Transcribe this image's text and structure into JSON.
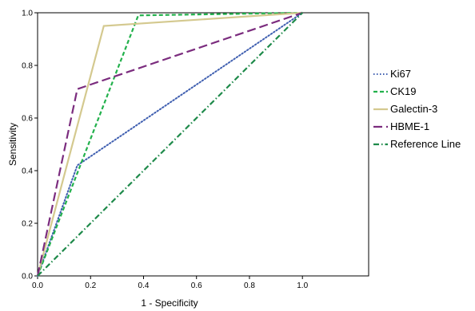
{
  "chart_data": {
    "type": "line",
    "title": "",
    "xlabel": "1 - Specificity",
    "ylabel": "Sensitivity",
    "xlim": [
      0,
      1.25
    ],
    "ylim": [
      0,
      1.0
    ],
    "x_ticks": [
      "0.0",
      "0.2",
      "0.4",
      "0.6",
      "0.8",
      "1.0"
    ],
    "y_ticks": [
      "0.0",
      "0.2",
      "0.4",
      "0.6",
      "0.8",
      "1.0"
    ],
    "grid": false,
    "legend_position": "right",
    "series": [
      {
        "name": "Ki67",
        "color": "#3f5fb0",
        "dash": "dotted",
        "points": [
          [
            0,
            0
          ],
          [
            0.15,
            0.42
          ],
          [
            1.0,
            1.0
          ]
        ]
      },
      {
        "name": "CK19",
        "color": "#22b14c",
        "dash": "dashed",
        "points": [
          [
            0,
            0
          ],
          [
            0.38,
            0.99
          ],
          [
            1.0,
            1.0
          ]
        ]
      },
      {
        "name": "Galectin-3",
        "color": "#d4c98f",
        "dash": "solid",
        "points": [
          [
            0,
            0
          ],
          [
            0.25,
            0.95
          ],
          [
            1.0,
            1.0
          ]
        ]
      },
      {
        "name": "HBME-1",
        "color": "#7b2c7e",
        "dash": "longdash",
        "points": [
          [
            0,
            0
          ],
          [
            0.15,
            0.71
          ],
          [
            1.0,
            1.0
          ]
        ]
      },
      {
        "name": "Reference Line",
        "color": "#1e8a4a",
        "dash": "dashdot",
        "points": [
          [
            0,
            0
          ],
          [
            1.0,
            1.0
          ]
        ]
      }
    ]
  }
}
